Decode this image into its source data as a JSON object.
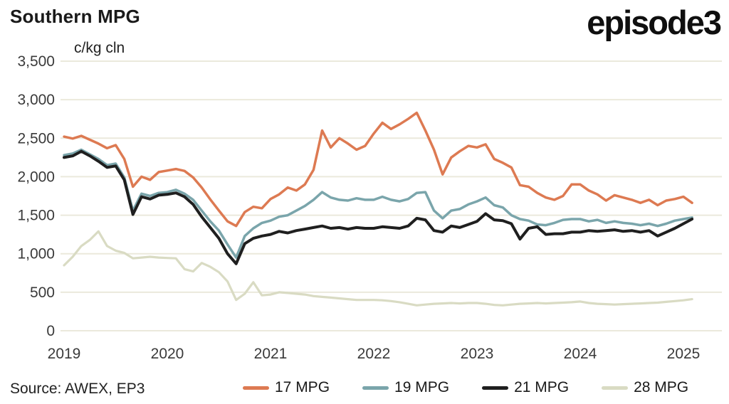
{
  "header": {
    "title": "Southern MPG",
    "logo": "episode3"
  },
  "source": "Source: AWEX, EP3",
  "chart_data": {
    "type": "line",
    "title": "Southern MPG",
    "unit_label": "c/kg cln",
    "x_ticks": [
      2019,
      2020,
      2021,
      2022,
      2023,
      2024,
      2025
    ],
    "y_ticks": [
      0,
      500,
      1000,
      1500,
      2000,
      2500,
      3000,
      3500
    ],
    "ylim": [
      0,
      3500
    ],
    "x_start_year": 2019.0,
    "points_per_year": 12,
    "grid": true,
    "grid_color": "#ebe9dc",
    "axis_text_color": "#3a3a3a",
    "legend_position": "bottom",
    "series": [
      {
        "name": "17 MPG",
        "color": "#dd7a52",
        "values": [
          2520,
          2495,
          2530,
          2480,
          2430,
          2370,
          2410,
          2230,
          1870,
          2000,
          1960,
          2060,
          2080,
          2100,
          2075,
          1990,
          1860,
          1705,
          1560,
          1420,
          1360,
          1540,
          1610,
          1590,
          1710,
          1770,
          1860,
          1820,
          1900,
          2090,
          2600,
          2380,
          2500,
          2430,
          2350,
          2400,
          2560,
          2700,
          2620,
          2680,
          2750,
          2830,
          2600,
          2350,
          2030,
          2250,
          2330,
          2400,
          2380,
          2420,
          2230,
          2180,
          2120,
          1890,
          1870,
          1790,
          1730,
          1700,
          1750,
          1900,
          1900,
          1820,
          1770,
          1690,
          1760,
          1730,
          1700,
          1660,
          1700,
          1630,
          1690,
          1710,
          1740,
          1660
        ]
      },
      {
        "name": "19 MPG",
        "color": "#7aa5ab",
        "values": [
          2280,
          2300,
          2350,
          2290,
          2230,
          2150,
          2170,
          1990,
          1560,
          1780,
          1750,
          1790,
          1800,
          1830,
          1780,
          1700,
          1560,
          1420,
          1300,
          1120,
          950,
          1230,
          1330,
          1400,
          1430,
          1480,
          1500,
          1560,
          1620,
          1700,
          1800,
          1730,
          1700,
          1690,
          1720,
          1700,
          1700,
          1740,
          1700,
          1680,
          1710,
          1790,
          1800,
          1560,
          1460,
          1560,
          1580,
          1640,
          1680,
          1730,
          1630,
          1600,
          1500,
          1450,
          1430,
          1380,
          1370,
          1400,
          1440,
          1450,
          1450,
          1420,
          1440,
          1400,
          1420,
          1400,
          1390,
          1370,
          1390,
          1360,
          1390,
          1430,
          1450,
          1470
        ]
      },
      {
        "name": "21 MPG",
        "color": "#1f1f1f",
        "values": [
          2250,
          2270,
          2330,
          2270,
          2200,
          2120,
          2140,
          1960,
          1510,
          1740,
          1710,
          1760,
          1770,
          1790,
          1740,
          1640,
          1480,
          1340,
          1200,
          1000,
          870,
          1130,
          1200,
          1230,
          1250,
          1290,
          1270,
          1300,
          1320,
          1340,
          1360,
          1330,
          1340,
          1320,
          1340,
          1330,
          1330,
          1350,
          1340,
          1330,
          1360,
          1460,
          1440,
          1300,
          1280,
          1360,
          1340,
          1380,
          1420,
          1520,
          1440,
          1430,
          1390,
          1190,
          1330,
          1350,
          1250,
          1260,
          1260,
          1280,
          1280,
          1300,
          1290,
          1300,
          1310,
          1290,
          1300,
          1280,
          1300,
          1230,
          1280,
          1330,
          1390,
          1450
        ]
      },
      {
        "name": "28 MPG",
        "color": "#d9dbc3",
        "values": [
          850,
          960,
          1100,
          1180,
          1290,
          1100,
          1040,
          1010,
          940,
          950,
          960,
          950,
          945,
          940,
          800,
          770,
          880,
          830,
          760,
          640,
          400,
          480,
          630,
          460,
          470,
          500,
          490,
          480,
          470,
          450,
          440,
          430,
          420,
          410,
          400,
          400,
          400,
          395,
          385,
          370,
          350,
          330,
          340,
          350,
          355,
          360,
          355,
          360,
          360,
          350,
          335,
          330,
          340,
          350,
          355,
          360,
          355,
          360,
          365,
          370,
          380,
          360,
          350,
          345,
          340,
          345,
          350,
          355,
          360,
          365,
          375,
          385,
          395,
          410
        ]
      }
    ]
  }
}
